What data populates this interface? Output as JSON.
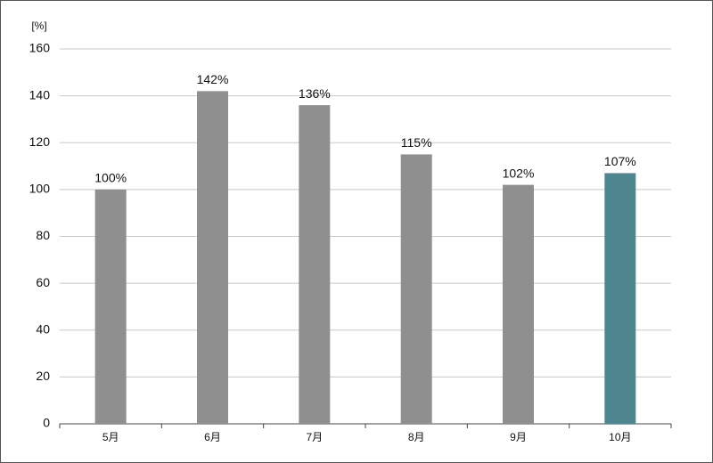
{
  "chart_data": {
    "type": "bar",
    "y_label": "[%]",
    "categories": [
      "5月",
      "6月",
      "7月",
      "8月",
      "9月",
      "10月"
    ],
    "values": [
      100,
      142,
      136,
      115,
      102,
      107
    ],
    "value_labels": [
      "100%",
      "142%",
      "136%",
      "115%",
      "102%",
      "107%"
    ],
    "colors": [
      "#8f8f8f",
      "#8f8f8f",
      "#8f8f8f",
      "#8f8f8f",
      "#8f8f8f",
      "#4e8790"
    ],
    "ylim": [
      0,
      160
    ],
    "yticks": [
      0,
      20,
      40,
      60,
      80,
      100,
      120,
      140,
      160
    ],
    "grid": true
  }
}
